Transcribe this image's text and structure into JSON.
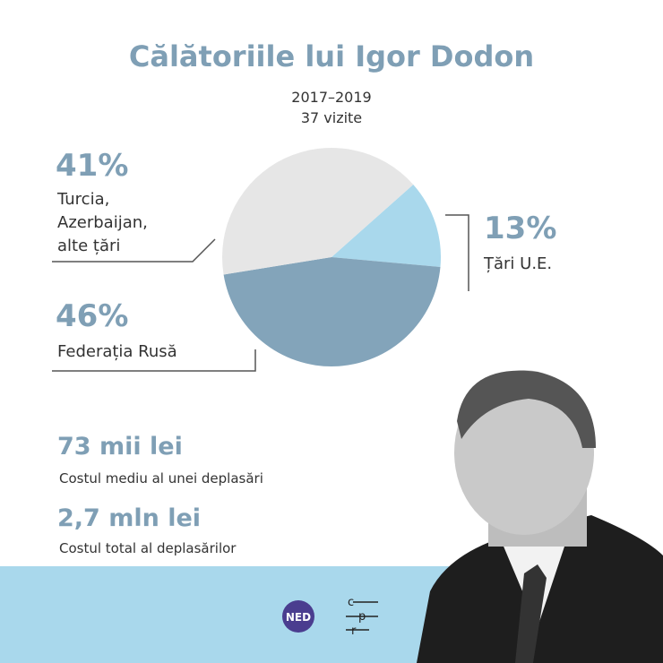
{
  "chart_data": {
    "type": "pie",
    "title": "Călătoriile lui Igor Dodon",
    "subtitle": [
      "2017–2019",
      "37 vizite"
    ],
    "categories": [
      "Țări U.E.",
      "Federația Rusă",
      "Turcia, Azerbaijan, alte țări"
    ],
    "values": [
      13,
      46,
      41
    ],
    "value_labels": [
      "13%",
      "46%",
      "41%"
    ],
    "colors": [
      "#a9d8ec",
      "#83a4ba",
      "#e6e6e6"
    ]
  },
  "stats": [
    {
      "value": "73 mii lei",
      "label": "Costul mediu al unei deplasări"
    },
    {
      "value": "2,7 mln lei",
      "label": "Costul total al deplasărilor"
    }
  ],
  "logos": {
    "ned": "NED",
    "cpr": [
      "c",
      "p",
      "r"
    ]
  }
}
